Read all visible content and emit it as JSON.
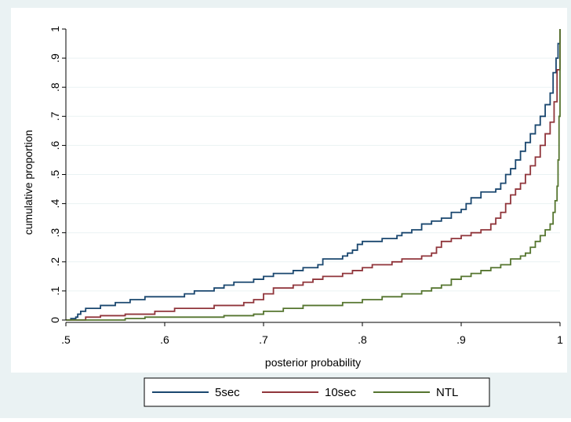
{
  "chart_data": {
    "type": "line",
    "title": "",
    "xlabel": "posterior probability",
    "ylabel": "cumulative proportion",
    "xlim": [
      0.5,
      1.0
    ],
    "ylim": [
      0,
      1
    ],
    "x_ticks": [
      {
        "value": 0.5,
        "label": ".5"
      },
      {
        "value": 0.6,
        "label": ".6"
      },
      {
        "value": 0.7,
        "label": ".7"
      },
      {
        "value": 0.8,
        "label": ".8"
      },
      {
        "value": 0.9,
        "label": ".9"
      },
      {
        "value": 1.0,
        "label": "1"
      }
    ],
    "y_ticks": [
      {
        "value": 0,
        "label": "0"
      },
      {
        "value": 0.1,
        "label": ".1"
      },
      {
        "value": 0.2,
        "label": ".2"
      },
      {
        "value": 0.3,
        "label": ".3"
      },
      {
        "value": 0.4,
        "label": ".4"
      },
      {
        "value": 0.5,
        "label": ".5"
      },
      {
        "value": 0.6,
        "label": ".6"
      },
      {
        "value": 0.7,
        "label": ".7"
      },
      {
        "value": 0.8,
        "label": ".8"
      },
      {
        "value": 0.9,
        "label": ".9"
      },
      {
        "value": 1.0,
        "label": "1"
      }
    ],
    "grid": "horizontal",
    "legend_position": "bottom",
    "colors": {
      "outer_background": "#eaf2f3",
      "plot_background": "#ffffff",
      "grid": "#eaf2f3"
    },
    "series": [
      {
        "name": "5sec",
        "color": "#1a476f",
        "step": true,
        "x": [
          0.5,
          0.505,
          0.51,
          0.512,
          0.515,
          0.52,
          0.535,
          0.55,
          0.565,
          0.58,
          0.59,
          0.62,
          0.63,
          0.65,
          0.66,
          0.67,
          0.69,
          0.7,
          0.71,
          0.73,
          0.74,
          0.755,
          0.76,
          0.78,
          0.785,
          0.79,
          0.795,
          0.8,
          0.82,
          0.835,
          0.84,
          0.85,
          0.86,
          0.87,
          0.88,
          0.89,
          0.9,
          0.905,
          0.91,
          0.92,
          0.935,
          0.94,
          0.945,
          0.95,
          0.955,
          0.96,
          0.965,
          0.97,
          0.975,
          0.98,
          0.985,
          0.99,
          0.993,
          0.996,
          0.998,
          1.0
        ],
        "y": [
          0,
          0.005,
          0.01,
          0.02,
          0.03,
          0.04,
          0.05,
          0.06,
          0.07,
          0.08,
          0.08,
          0.09,
          0.1,
          0.11,
          0.12,
          0.13,
          0.14,
          0.15,
          0.16,
          0.17,
          0.18,
          0.19,
          0.21,
          0.22,
          0.23,
          0.24,
          0.26,
          0.27,
          0.28,
          0.29,
          0.3,
          0.31,
          0.33,
          0.34,
          0.35,
          0.37,
          0.38,
          0.4,
          0.42,
          0.44,
          0.45,
          0.47,
          0.5,
          0.52,
          0.55,
          0.58,
          0.61,
          0.64,
          0.67,
          0.7,
          0.74,
          0.78,
          0.85,
          0.9,
          0.95,
          1.0
        ]
      },
      {
        "name": "10sec",
        "color": "#90353b",
        "step": true,
        "x": [
          0.5,
          0.52,
          0.535,
          0.56,
          0.59,
          0.61,
          0.625,
          0.65,
          0.67,
          0.68,
          0.69,
          0.7,
          0.71,
          0.73,
          0.74,
          0.75,
          0.76,
          0.78,
          0.79,
          0.8,
          0.81,
          0.83,
          0.84,
          0.85,
          0.86,
          0.87,
          0.875,
          0.88,
          0.89,
          0.9,
          0.91,
          0.92,
          0.93,
          0.935,
          0.94,
          0.945,
          0.95,
          0.955,
          0.96,
          0.965,
          0.97,
          0.975,
          0.98,
          0.985,
          0.99,
          0.994,
          0.997,
          1.0
        ],
        "y": [
          0,
          0.01,
          0.015,
          0.02,
          0.03,
          0.04,
          0.04,
          0.05,
          0.05,
          0.06,
          0.07,
          0.09,
          0.11,
          0.12,
          0.13,
          0.14,
          0.15,
          0.16,
          0.17,
          0.18,
          0.19,
          0.2,
          0.21,
          0.21,
          0.22,
          0.23,
          0.25,
          0.27,
          0.28,
          0.29,
          0.3,
          0.31,
          0.33,
          0.35,
          0.37,
          0.4,
          0.43,
          0.45,
          0.47,
          0.5,
          0.53,
          0.56,
          0.6,
          0.64,
          0.68,
          0.75,
          0.86,
          1.0
        ]
      },
      {
        "name": "NTL",
        "color": "#55752f",
        "step": true,
        "x": [
          0.5,
          0.56,
          0.58,
          0.66,
          0.69,
          0.7,
          0.72,
          0.74,
          0.76,
          0.78,
          0.8,
          0.82,
          0.84,
          0.86,
          0.87,
          0.88,
          0.89,
          0.9,
          0.91,
          0.92,
          0.93,
          0.94,
          0.95,
          0.96,
          0.965,
          0.97,
          0.975,
          0.98,
          0.985,
          0.99,
          0.993,
          0.995,
          0.997,
          0.998,
          0.999,
          1.0
        ],
        "y": [
          0,
          0.005,
          0.01,
          0.015,
          0.02,
          0.03,
          0.04,
          0.05,
          0.05,
          0.06,
          0.07,
          0.08,
          0.09,
          0.1,
          0.11,
          0.12,
          0.14,
          0.15,
          0.16,
          0.17,
          0.18,
          0.19,
          0.21,
          0.22,
          0.23,
          0.25,
          0.27,
          0.29,
          0.31,
          0.33,
          0.37,
          0.41,
          0.46,
          0.55,
          0.7,
          1.0
        ]
      }
    ]
  }
}
